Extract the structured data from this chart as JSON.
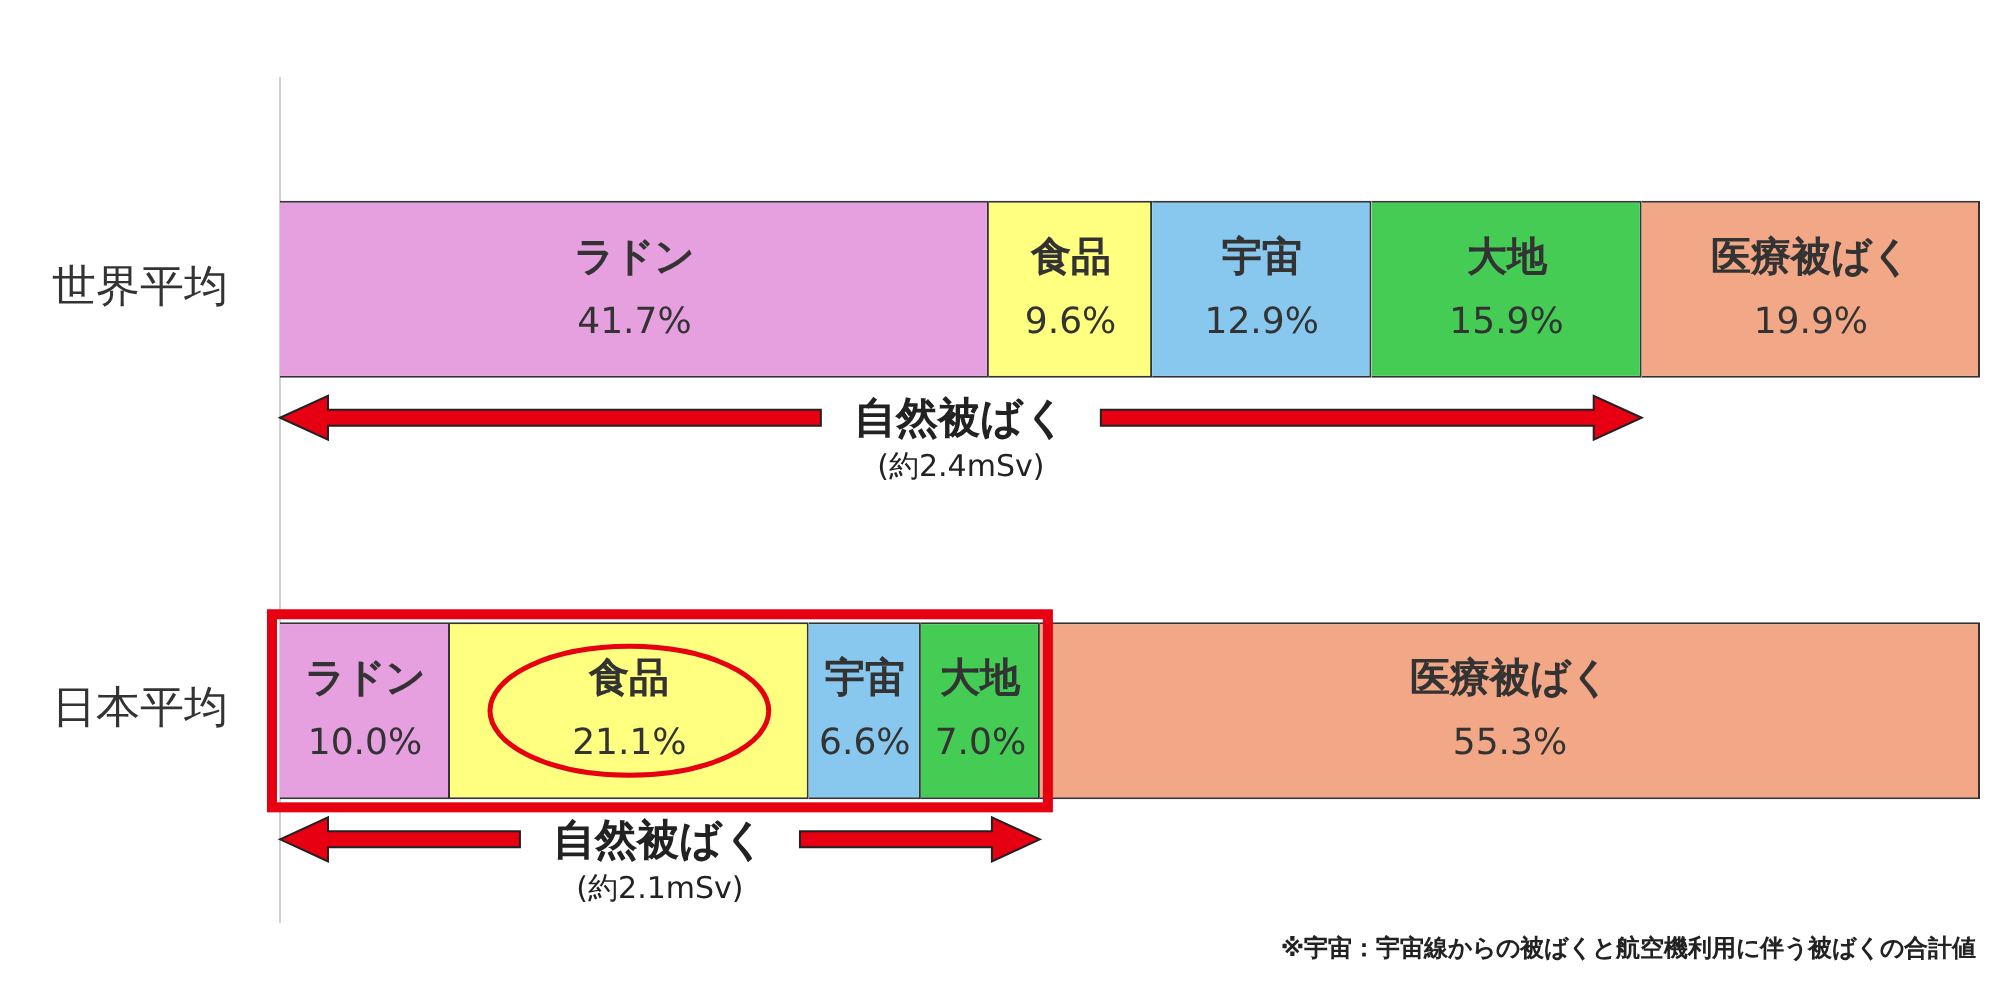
{
  "chart_data": {
    "type": "bar",
    "orientation": "horizontal",
    "stacked": true,
    "categories": [
      "世界平均",
      "日本平均"
    ],
    "xlim": [
      0,
      100
    ],
    "tick_labels": "y",
    "grid": false,
    "legend": false,
    "series": [
      {
        "name": "ラドン",
        "color": "#e6a0e0",
        "values": [
          41.7,
          10.0
        ],
        "value_labels": [
          "41.7%",
          "10.0%"
        ]
      },
      {
        "name": "食品",
        "color": "#ffff80",
        "values": [
          9.6,
          21.1
        ],
        "value_labels": [
          "9.6%",
          "21.1%"
        ]
      },
      {
        "name": "宇宙",
        "color": "#88c8ee",
        "values": [
          12.9,
          6.6
        ],
        "value_labels": [
          "12.9%",
          "6.6%"
        ]
      },
      {
        "name": "大地",
        "color": "#44cc55",
        "values": [
          15.9,
          7.0
        ],
        "value_labels": [
          "15.9%",
          "7.0%"
        ]
      },
      {
        "name": "医療被ばく",
        "color": "#f2a886",
        "values": [
          19.9,
          55.3
        ],
        "value_labels": [
          "19.9%",
          "55.3%"
        ]
      }
    ],
    "annotations": [
      "自然被ばく",
      "(約2.4mSv)",
      "自然被ばく",
      "(約2.1mSv)",
      "※宇宙：宇宙線からの被ばくと航空機利用に伴う被ばくの合計値"
    ]
  }
}
